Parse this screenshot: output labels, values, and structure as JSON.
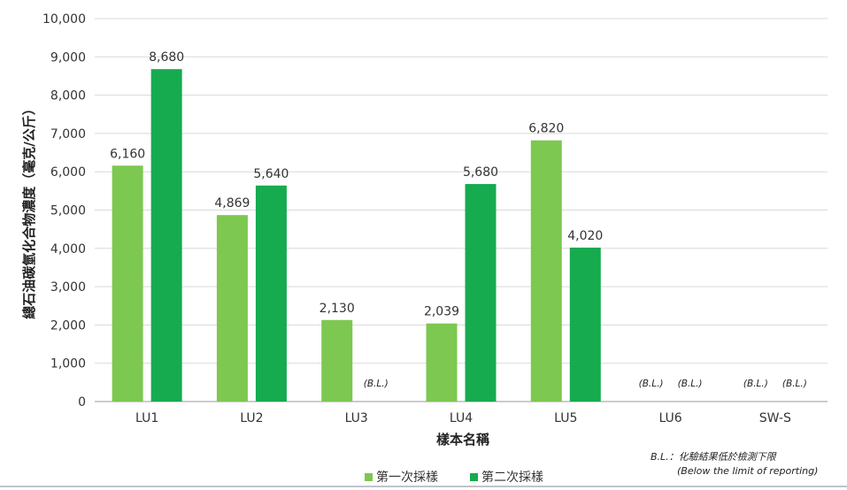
{
  "chart_data": {
    "type": "bar",
    "xlabel": "樣本名稱",
    "ylabel": "總石油碳氫化合物濃度（毫克/公斤）",
    "ylim": [
      0,
      10000
    ],
    "yticks": [
      "0",
      "1,000",
      "2,000",
      "3,000",
      "4,000",
      "5,000",
      "6,000",
      "7,000",
      "8,000",
      "9,000",
      "10,000"
    ],
    "grid": true,
    "legend_position": "bottom",
    "categories": [
      "LU1",
      "LU2",
      "LU3",
      "LU4",
      "LU5",
      "LU6",
      "SW-S"
    ],
    "series": [
      {
        "name": "第一次採樣",
        "color": "#7dc850",
        "values": [
          6160,
          4869,
          2130,
          2039,
          6820,
          null,
          null
        ],
        "labels": [
          "6,160",
          "4,869",
          "2,130",
          "2,039",
          "6,820",
          "(B.L.)",
          "(B.L.)"
        ]
      },
      {
        "name": "第二次採樣",
        "color": "#16ab4e",
        "values": [
          8680,
          5640,
          null,
          5680,
          4020,
          null,
          null
        ],
        "labels": [
          "8,680",
          "5,640",
          "(B.L.)",
          "5,680",
          "4,020",
          "(B.L.)",
          "(B.L.)"
        ]
      }
    ],
    "note": {
      "line1": "B.L.：化驗結果低於檢測下限",
      "line2": "(Below the limit of reporting)"
    }
  }
}
